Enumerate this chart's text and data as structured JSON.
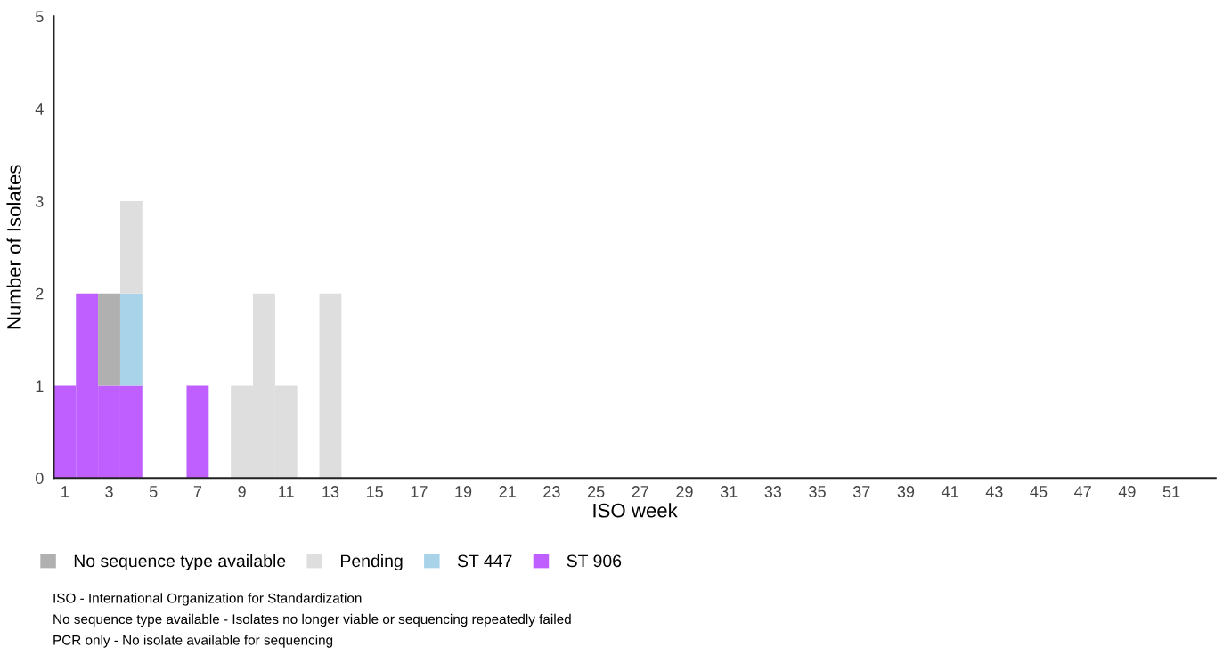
{
  "chart_data": {
    "type": "bar",
    "stacked": true,
    "xlabel": "ISO week",
    "ylabel": "Number of Isolates",
    "categories": [
      "1",
      null,
      "3",
      null,
      "5",
      null,
      "7",
      null,
      "9",
      null,
      "11",
      null,
      "13",
      null,
      "15",
      null,
      "17",
      null,
      "19",
      null,
      "21",
      null,
      "23",
      null,
      "25",
      null,
      "27",
      null,
      "29",
      null,
      "31",
      null,
      "33",
      null,
      "35",
      null,
      "37",
      null,
      "39",
      null,
      "41",
      null,
      "43",
      null,
      "45",
      null,
      "47",
      null,
      "49",
      null,
      "51",
      null
    ],
    "series": [
      {
        "name": "ST 906",
        "color": "#bf5fff",
        "values": [
          1,
          2,
          1,
          1,
          0,
          0,
          1,
          0,
          0,
          0,
          0,
          0,
          0,
          0,
          0,
          0,
          0,
          0,
          0,
          0,
          0,
          0,
          0,
          0,
          0,
          0,
          0,
          0,
          0,
          0,
          0,
          0,
          0,
          0,
          0,
          0,
          0,
          0,
          0,
          0,
          0,
          0,
          0,
          0,
          0,
          0,
          0,
          0,
          0,
          0,
          0,
          0
        ]
      },
      {
        "name": "ST 447",
        "color": "#a9d3e8",
        "values": [
          0,
          0,
          0,
          1,
          0,
          0,
          0,
          0,
          0,
          0,
          0,
          0,
          0,
          0,
          0,
          0,
          0,
          0,
          0,
          0,
          0,
          0,
          0,
          0,
          0,
          0,
          0,
          0,
          0,
          0,
          0,
          0,
          0,
          0,
          0,
          0,
          0,
          0,
          0,
          0,
          0,
          0,
          0,
          0,
          0,
          0,
          0,
          0,
          0,
          0,
          0,
          0
        ]
      },
      {
        "name": "Pending",
        "color": "#dedede",
        "values": [
          0,
          0,
          0,
          1,
          0,
          0,
          0,
          0,
          1,
          2,
          1,
          0,
          2,
          0,
          0,
          0,
          0,
          0,
          0,
          0,
          0,
          0,
          0,
          0,
          0,
          0,
          0,
          0,
          0,
          0,
          0,
          0,
          0,
          0,
          0,
          0,
          0,
          0,
          0,
          0,
          0,
          0,
          0,
          0,
          0,
          0,
          0,
          0,
          0,
          0,
          0,
          0
        ]
      },
      {
        "name": "No sequence type available",
        "color": "#b0b0b0",
        "values": [
          0,
          0,
          1,
          0,
          0,
          0,
          0,
          0,
          0,
          0,
          0,
          0,
          0,
          0,
          0,
          0,
          0,
          0,
          0,
          0,
          0,
          0,
          0,
          0,
          0,
          0,
          0,
          0,
          0,
          0,
          0,
          0,
          0,
          0,
          0,
          0,
          0,
          0,
          0,
          0,
          0,
          0,
          0,
          0,
          0,
          0,
          0,
          0,
          0,
          0,
          0,
          0
        ]
      }
    ],
    "ylim": [
      0,
      5
    ],
    "yticks": [
      0,
      1,
      2,
      3,
      4,
      5
    ],
    "grid": false,
    "legend": "bottom left",
    "annotations": [
      "ISO - International Organization for Standardization",
      "No sequence type available - Isolates no longer viable or sequencing repeatedly failed",
      "PCR only - No isolate available for sequencing"
    ]
  }
}
